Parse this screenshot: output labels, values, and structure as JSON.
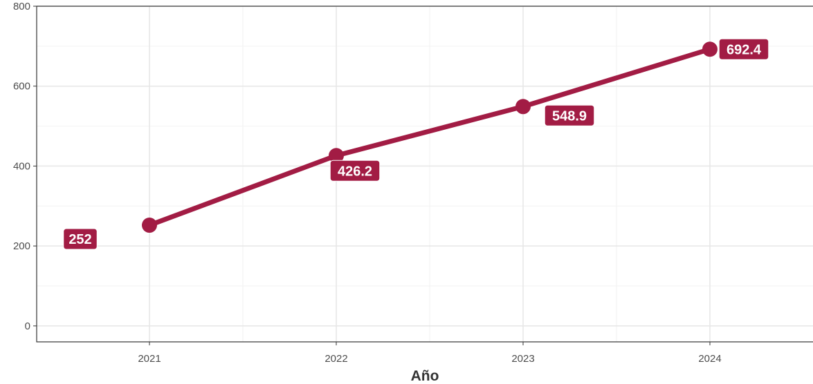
{
  "colors": {
    "series": "#A21C44",
    "grid_major": "#e6e6e6",
    "grid_minor": "#f2f2f2",
    "panel_border": "#333333",
    "label_text": "#ffffff"
  },
  "chart_data": {
    "type": "line",
    "title": "",
    "xlabel": "Año",
    "ylabel": "",
    "x": [
      "2021",
      "2022",
      "2023",
      "2024"
    ],
    "series": [
      {
        "values": [
          252,
          426.2,
          548.9,
          692.4
        ]
      }
    ],
    "data_labels": [
      "252",
      "426.2",
      "548.9",
      "692.4"
    ],
    "y_ticks": [
      0,
      200,
      400,
      600,
      800
    ],
    "y_tick_labels": [
      "0",
      "200",
      "400",
      "600",
      "800"
    ],
    "ylim": [
      -40,
      800
    ],
    "grid": true,
    "legend": "none",
    "markers": true
  }
}
